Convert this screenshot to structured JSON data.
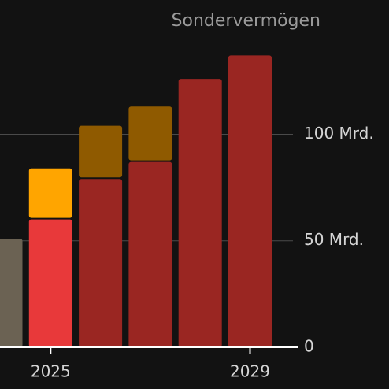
{
  "chart_data": {
    "type": "bar",
    "stacked": true,
    "title": "Sondervermögen",
    "categories": [
      null,
      "2025",
      null,
      null,
      null,
      "2029"
    ],
    "series": [
      {
        "values": [
          51,
          60,
          79,
          87,
          126,
          137
        ],
        "colors": [
          "#6b6253",
          "#e8393a",
          "#9a2622",
          "#9a2622",
          "#9a2622",
          "#9a2622"
        ]
      },
      {
        "values": [
          null,
          24,
          25,
          26,
          null,
          null
        ],
        "colors": [
          null,
          "#ffa500",
          "#8f5a00",
          "#8f5a00",
          null,
          null
        ]
      }
    ],
    "ylim": [
      0,
      163
    ],
    "yticks": [
      0,
      {
        "value": 50,
        "label": "50 Mrd."
      },
      {
        "value": 100,
        "label": "100 Mrd."
      }
    ],
    "grid": true,
    "y_axis_side": "right"
  }
}
